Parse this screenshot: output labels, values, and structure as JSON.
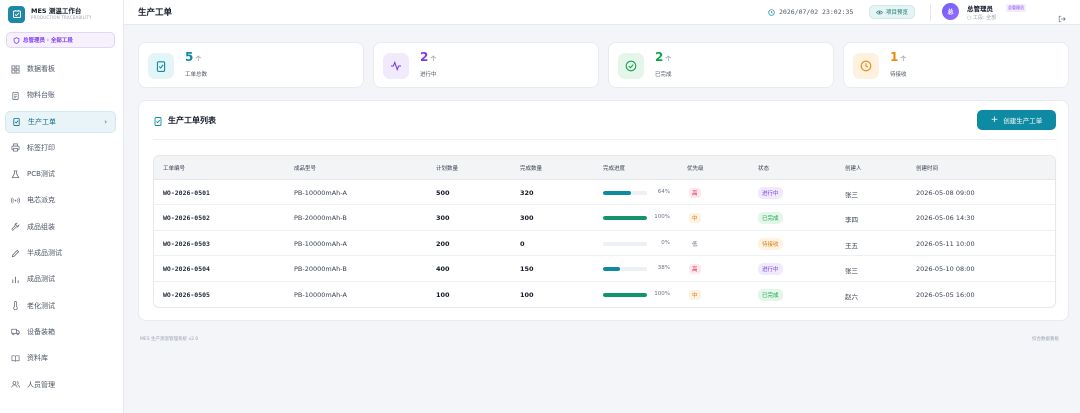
{
  "brand": {
    "title": "MES 测温工作台",
    "subtitle": "PRODUCTION TRACEABILITY"
  },
  "role_badge": "总管理员 · 全部工段",
  "nav": [
    {
      "label": "数据看板",
      "icon": "dashboard-icon"
    },
    {
      "label": "物料台账",
      "icon": "clipboard-icon"
    },
    {
      "label": "生产工单",
      "icon": "clipboard-check-icon",
      "active": true
    },
    {
      "label": "标签打印",
      "icon": "printer-icon"
    },
    {
      "label": "PCB测试",
      "icon": "flask-icon"
    },
    {
      "label": "电芯派克",
      "icon": "signal-icon"
    },
    {
      "label": "成品组装",
      "icon": "wrench-icon"
    },
    {
      "label": "半成品测试",
      "icon": "pencil-icon"
    },
    {
      "label": "成品测试",
      "icon": "bar-chart-icon"
    },
    {
      "label": "老化测试",
      "icon": "thermometer-icon"
    },
    {
      "label": "设备装箱",
      "icon": "truck-icon"
    },
    {
      "label": "资料库",
      "icon": "book-icon"
    },
    {
      "label": "人员管理",
      "icon": "users-icon"
    }
  ],
  "header": {
    "title": "生产工单",
    "datetime": "2026/07/02 23:02:35",
    "preview_label": "项目预览",
    "user": {
      "avatar": "总",
      "name": "总管理员",
      "tag": "总管理员",
      "process": "工段: 全部"
    }
  },
  "stats": [
    {
      "value": "5",
      "unit": "个",
      "label": "工单总数",
      "color": "#0e8aa3",
      "bg": "#e3f5f7",
      "icon": "clipboard-check-icon"
    },
    {
      "value": "2",
      "unit": "个",
      "label": "进行中",
      "color": "#7c3aed",
      "bg": "#f1eafd",
      "icon": "activity-icon"
    },
    {
      "value": "2",
      "unit": "个",
      "label": "已完成",
      "color": "#16a34a",
      "bg": "#e4f6ea",
      "icon": "check-circle-icon"
    },
    {
      "value": "1",
      "unit": "个",
      "label": "待接收",
      "color": "#ea8a0c",
      "bg": "#fdf1df",
      "icon": "clock-icon"
    }
  ],
  "panel": {
    "title": "生产工单列表",
    "create_label": "创建生产工单"
  },
  "table": {
    "headers": [
      "工单编号",
      "成品型号",
      "计划数量",
      "完成数量",
      "完成进度",
      "优先级",
      "状态",
      "创建人",
      "创建时间"
    ],
    "rows": [
      {
        "code": "WO-2026-0501",
        "model": "PB-10000mAh-A",
        "plan": "500",
        "done": "320",
        "progress": 64,
        "pct": "64%",
        "bar_color": "#0e8aa3",
        "priority": "高",
        "prio_color": "#e11d48",
        "prio_bg": "#fde8ec",
        "status": "进行中",
        "status_color": "#7c3aed",
        "status_bg": "#f1eafd",
        "creator": "张三",
        "created": "2026-05-08 09:00"
      },
      {
        "code": "WO-2026-0502",
        "model": "PB-20000mAh-B",
        "plan": "300",
        "done": "300",
        "progress": 100,
        "pct": "100%",
        "bar_color": "#11946b",
        "priority": "中",
        "prio_color": "#d97706",
        "prio_bg": "#fef3e2",
        "status": "已完成",
        "status_color": "#16a34a",
        "status_bg": "#e4f6ea",
        "creator": "李四",
        "created": "2026-05-06 14:30"
      },
      {
        "code": "WO-2026-0503",
        "model": "PB-10000mAh-A",
        "plan": "200",
        "done": "0",
        "progress": 0,
        "pct": "0%",
        "bar_color": "#0e8aa3",
        "priority": "低",
        "prio_color": "#6b7280",
        "prio_bg": "#ffffff",
        "status": "待接收",
        "status_color": "#d97706",
        "status_bg": "#fef3e2",
        "creator": "王五",
        "created": "2026-05-11 10:00"
      },
      {
        "code": "WO-2026-0504",
        "model": "PB-20000mAh-B",
        "plan": "400",
        "done": "150",
        "progress": 38,
        "pct": "38%",
        "bar_color": "#0e8aa3",
        "priority": "高",
        "prio_color": "#e11d48",
        "prio_bg": "#fde8ec",
        "status": "进行中",
        "status_color": "#7c3aed",
        "status_bg": "#f1eafd",
        "creator": "张三",
        "created": "2026-05-10 08:00"
      },
      {
        "code": "WO-2026-0505",
        "model": "PB-10000mAh-A",
        "plan": "100",
        "done": "100",
        "progress": 100,
        "pct": "100%",
        "bar_color": "#11946b",
        "priority": "中",
        "prio_color": "#d97706",
        "prio_bg": "#fef3e2",
        "status": "已完成",
        "status_color": "#16a34a",
        "status_bg": "#e4f6ea",
        "creator": "赵六",
        "created": "2026-05-05 16:00"
      }
    ]
  },
  "footer": {
    "left": "MES 生产测温管理系统 v2.0",
    "right": "综合数据看板"
  }
}
